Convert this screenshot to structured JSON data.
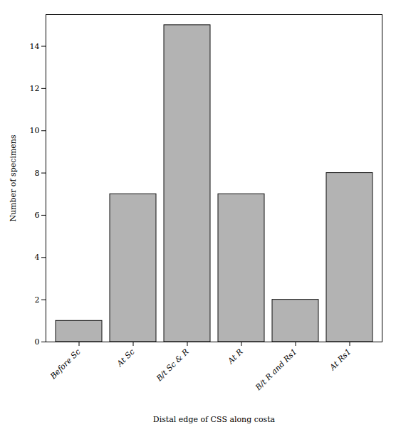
{
  "chart_data": {
    "type": "bar",
    "categories": [
      "Before Sc",
      "At Sc",
      "B/t Sc & R",
      "At R",
      "B/t R and Rs1",
      "At Rs1"
    ],
    "values": [
      1,
      7,
      15,
      7,
      2,
      8
    ],
    "color": "#b3b3b3",
    "xlabel": "Distal edge of CSS along costa",
    "ylabel": "Number of specimens",
    "ylim": [
      0,
      15.5
    ],
    "yticks": [
      0,
      2,
      4,
      6,
      8,
      10,
      12,
      14
    ],
    "grid": false
  }
}
